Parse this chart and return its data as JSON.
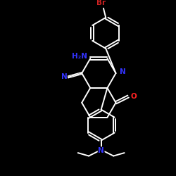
{
  "background_color": "#000000",
  "bond_color": "#ffffff",
  "atom_colors": {
    "N": "#3333ff",
    "O": "#ff2222",
    "Br": "#cc2222",
    "C": "#ffffff"
  },
  "figsize": [
    2.5,
    2.5
  ],
  "dpi": 100,
  "bond_lw": 1.4,
  "font_size": 7.5
}
